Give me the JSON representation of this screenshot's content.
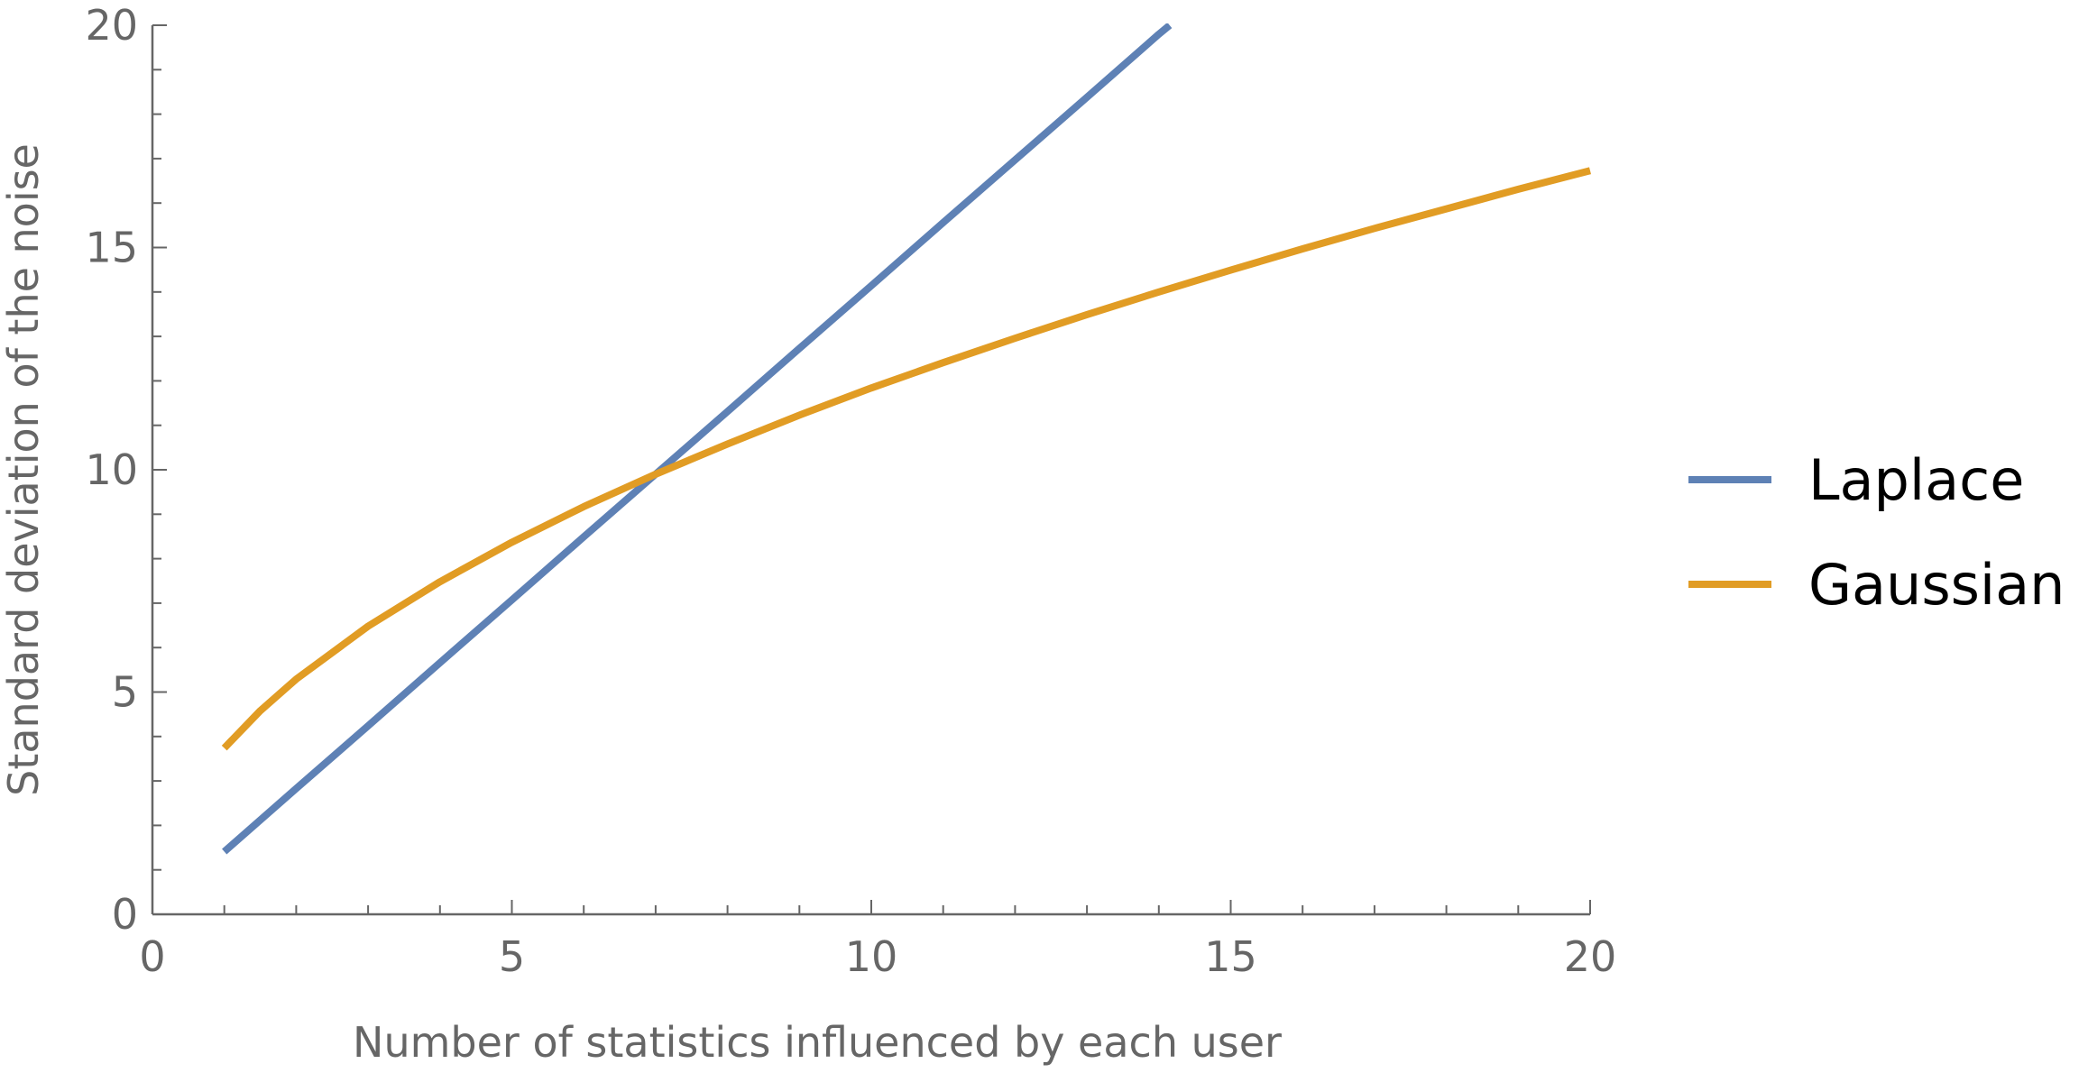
{
  "chart_data": {
    "type": "line",
    "title": "",
    "xlabel": "Number of statistics influenced by each user",
    "ylabel": "Standard deviation of the noise",
    "xlim": [
      0,
      20
    ],
    "ylim": [
      0,
      20
    ],
    "x_major_ticks": [
      0,
      5,
      10,
      15,
      20
    ],
    "y_major_ticks": [
      0,
      5,
      10,
      15,
      20
    ],
    "x_tick_labels": [
      "0",
      "5",
      "10",
      "15",
      "20"
    ],
    "y_tick_labels": [
      "0",
      "5",
      "10",
      "15",
      "20"
    ],
    "grid": false,
    "legend_position": "right",
    "series": [
      {
        "name": "Laplace",
        "color": "#5E81B5",
        "x": [
          1,
          2,
          3,
          4,
          5,
          6,
          7,
          8,
          9,
          10,
          11,
          12,
          13,
          14,
          14.15
        ],
        "values": [
          1.41,
          2.83,
          4.24,
          5.66,
          7.07,
          8.49,
          9.9,
          11.31,
          12.73,
          14.14,
          15.56,
          16.97,
          18.38,
          19.8,
          20.0
        ]
      },
      {
        "name": "Gaussian",
        "color": "#E19C24",
        "x": [
          1,
          1.5,
          2,
          3,
          4,
          5,
          6,
          7,
          8,
          9,
          10,
          11,
          12,
          13,
          14,
          15,
          16,
          17,
          18,
          19,
          20
        ],
        "values": [
          3.74,
          4.58,
          5.29,
          6.48,
          7.48,
          8.37,
          9.17,
          9.9,
          10.58,
          11.23,
          11.84,
          12.41,
          12.96,
          13.49,
          14.0,
          14.49,
          14.97,
          15.43,
          15.87,
          16.31,
          16.73
        ]
      }
    ]
  }
}
